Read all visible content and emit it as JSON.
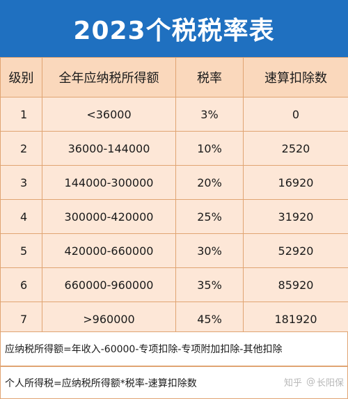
{
  "title": "2023个税税率表",
  "table": {
    "headers": [
      "级别",
      "全年应纳税所得额",
      "税率",
      "速算扣除数"
    ],
    "rows": [
      [
        "1",
        "<36000",
        "3%",
        "0"
      ],
      [
        "2",
        "36000-144000",
        "10%",
        "2520"
      ],
      [
        "3",
        "144000-300000",
        "20%",
        "16920"
      ],
      [
        "4",
        "300000-420000",
        "25%",
        "31920"
      ],
      [
        "5",
        "420000-660000",
        "30%",
        "52920"
      ],
      [
        "6",
        "660000-960000",
        "35%",
        "85920"
      ],
      [
        "7",
        ">960000",
        "45%",
        "181920"
      ]
    ]
  },
  "notes": {
    "line1": "应纳税所得额=年收入-60000-专项扣除-专项附加扣除-其他扣除",
    "line2": "个人所得税=应纳税所得额*税率-速算扣除数"
  },
  "watermark": {
    "site": "知乎",
    "icon": "at-icon",
    "author": "长阳保"
  },
  "colors": {
    "title_bg": "#1f70c0",
    "header_bg": "#fad8bc",
    "cell_bg": "#fde7d7",
    "border": "#e0a472"
  }
}
